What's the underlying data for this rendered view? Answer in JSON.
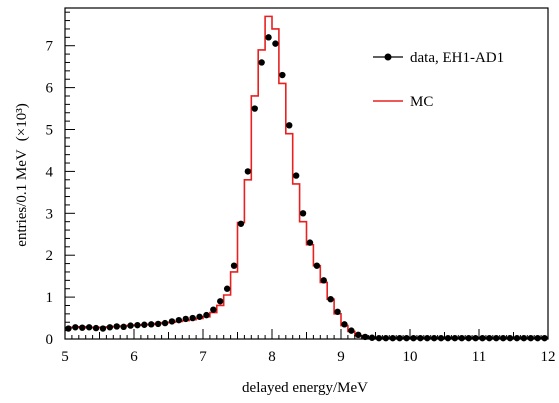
{
  "chart_data": {
    "type": "line",
    "title": "",
    "xlabel": "delayed energy/MeV",
    "ylabel": "entries/0.1 MeV",
    "ylabel_multiplier": "(×10³)",
    "xlim": [
      5,
      12
    ],
    "ylim": [
      0,
      7.9
    ],
    "grid": false,
    "legend_position": "top-right",
    "x_ticks": [
      5,
      6,
      7,
      8,
      9,
      10,
      11,
      12
    ],
    "y_ticks": [
      0,
      1,
      2,
      3,
      4,
      5,
      6,
      7
    ],
    "x_tick_labels": [
      "5",
      "6",
      "7",
      "8",
      "9",
      "10",
      "11",
      "12"
    ],
    "y_tick_labels": [
      "0",
      "1",
      "2",
      "3",
      "4",
      "5",
      "6",
      "7"
    ],
    "bin_width": 0.1,
    "x": [
      5.05,
      5.15,
      5.25,
      5.35,
      5.45,
      5.55,
      5.65,
      5.75,
      5.85,
      5.95,
      6.05,
      6.15,
      6.25,
      6.35,
      6.45,
      6.55,
      6.65,
      6.75,
      6.85,
      6.95,
      7.05,
      7.15,
      7.25,
      7.35,
      7.45,
      7.55,
      7.65,
      7.75,
      7.85,
      7.95,
      8.05,
      8.15,
      8.25,
      8.35,
      8.45,
      8.55,
      8.65,
      8.75,
      8.85,
      8.95,
      9.05,
      9.15,
      9.25,
      9.35,
      9.45,
      9.55,
      9.65,
      9.75,
      9.85,
      9.95,
      10.05,
      10.15,
      10.25,
      10.35,
      10.45,
      10.55,
      10.65,
      10.75,
      10.85,
      10.95,
      11.05,
      11.15,
      11.25,
      11.35,
      11.45,
      11.55,
      11.65,
      11.75,
      11.85,
      11.95
    ],
    "series": [
      {
        "name": "data, EH1-AD1",
        "style": "markers",
        "color": "#000000",
        "values": [
          0.25,
          0.28,
          0.27,
          0.28,
          0.26,
          0.25,
          0.28,
          0.3,
          0.29,
          0.32,
          0.33,
          0.34,
          0.35,
          0.36,
          0.38,
          0.42,
          0.45,
          0.48,
          0.5,
          0.53,
          0.57,
          0.7,
          0.9,
          1.2,
          1.75,
          2.75,
          4.0,
          5.5,
          6.6,
          7.2,
          7.05,
          6.3,
          5.1,
          3.9,
          3.0,
          2.3,
          1.75,
          1.4,
          0.95,
          0.65,
          0.35,
          0.2,
          0.1,
          0.05,
          0.03,
          0.02,
          0.02,
          0.02,
          0.02,
          0.02,
          0.02,
          0.02,
          0.02,
          0.02,
          0.02,
          0.02,
          0.02,
          0.02,
          0.02,
          0.02,
          0.02,
          0.02,
          0.02,
          0.02,
          0.02,
          0.02,
          0.02,
          0.02,
          0.02,
          0.02
        ]
      },
      {
        "name": "MC",
        "style": "step",
        "color": "#e8201f",
        "values": [
          0.27,
          0.28,
          0.29,
          0.27,
          0.28,
          0.28,
          0.29,
          0.3,
          0.31,
          0.32,
          0.33,
          0.34,
          0.35,
          0.37,
          0.39,
          0.4,
          0.42,
          0.44,
          0.46,
          0.49,
          0.53,
          0.63,
          0.8,
          1.05,
          1.6,
          2.78,
          3.8,
          5.8,
          6.9,
          7.7,
          7.4,
          6.1,
          4.9,
          3.7,
          2.8,
          2.25,
          1.75,
          1.35,
          0.95,
          0.6,
          0.32,
          0.18,
          0.08,
          0.04,
          0.02,
          0.01,
          0.01,
          0.01,
          0.01,
          0.01,
          0.01,
          0.01,
          0.01,
          0.01,
          0.01,
          0.01,
          0.01,
          0.01,
          0.01,
          0.01,
          0.01,
          0.01,
          0.01,
          0.01,
          0.01,
          0.01,
          0.01,
          0.01,
          0.01,
          0.01
        ]
      }
    ]
  }
}
